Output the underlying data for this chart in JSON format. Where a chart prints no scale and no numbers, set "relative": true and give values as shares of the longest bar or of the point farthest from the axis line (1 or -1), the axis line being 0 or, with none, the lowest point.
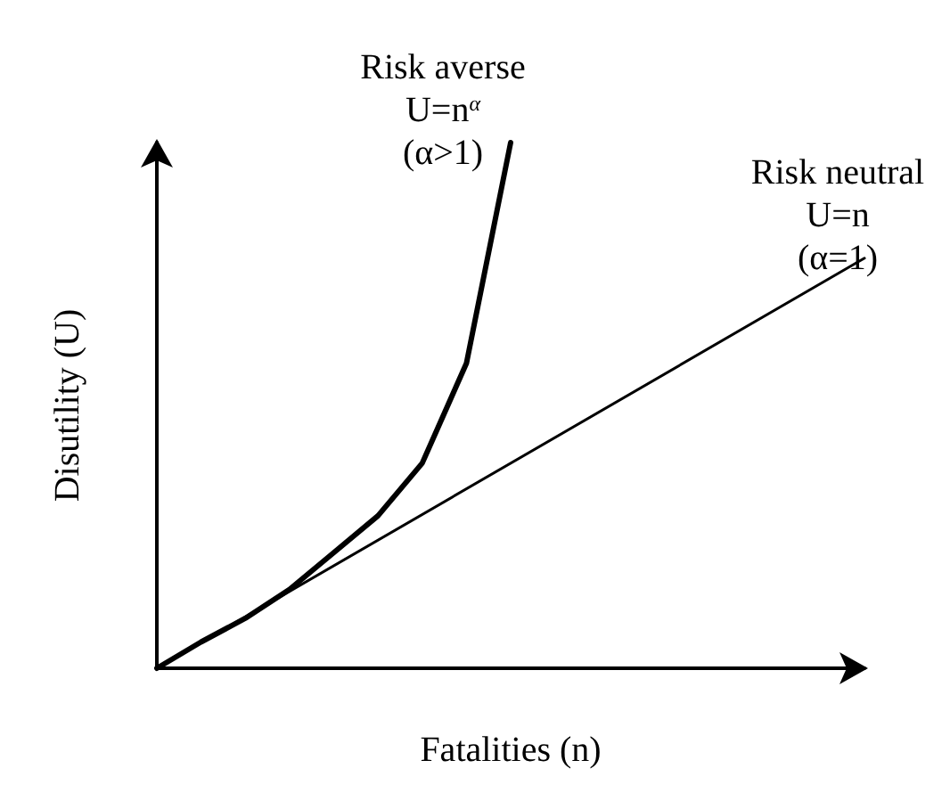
{
  "chart_data": {
    "type": "line",
    "relative": true,
    "xlabel": "Fatalities (n)",
    "ylabel": "Disutility (U)",
    "marker": "none",
    "grid": false,
    "legend": false,
    "categories": [
      null,
      null,
      null,
      null,
      null,
      null,
      null,
      null,
      null,
      null,
      null,
      null,
      null,
      null,
      null,
      null,
      null
    ],
    "series": [
      {
        "name": "Risk averse",
        "color": "#000000",
        "values": [
          0,
          0.05,
          0.095,
          0.15,
          0.22,
          0.29,
          0.39,
          0.58,
          1,
          null,
          null,
          null,
          null,
          null,
          null,
          null,
          null
        ]
      },
      {
        "name": "Risk neutral",
        "color": "#000000",
        "values": [
          0,
          null,
          null,
          null,
          null,
          null,
          null,
          null,
          null,
          null,
          null,
          null,
          null,
          null,
          null,
          null,
          0.78
        ]
      }
    ],
    "annotations": [
      "U=n$^{α}$",
      "(α>1)",
      "U=n",
      "(α=1)"
    ]
  }
}
